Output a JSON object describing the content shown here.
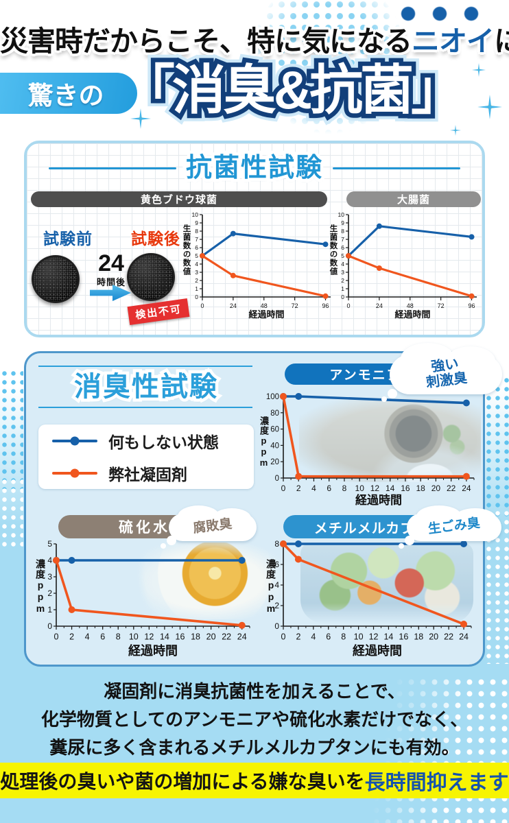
{
  "header": {
    "line1_black1": "災害時だからこそ、特に気になる",
    "line1_blue": "ニオイ",
    "line1_black2": "にも",
    "badge": "驚きの",
    "big_title": "「消臭&抗菌」"
  },
  "antibacterial": {
    "title": "抗菌性試験",
    "pill_left": "黄色ブドウ球菌",
    "pill_right": "大腸菌",
    "before_label": "試験前",
    "after_label": "試験後",
    "elapsed_value": "24",
    "elapsed_suffix": "時間後",
    "not_detected": "検出不可"
  },
  "deodorant": {
    "title": "消臭性試験",
    "legend": [
      {
        "label": "何もしない状態",
        "color": "#1660a9"
      },
      {
        "label": "弊社凝固剤",
        "color": "#f0561e"
      }
    ],
    "ammonia_pill": "アンモニア",
    "ammonia_cloud": "強い\n刺激臭",
    "sulfide_pill": "硫化水素",
    "sulfide_cloud": "腐敗臭",
    "methyl_pill": "メチルメルカプタン",
    "methyl_cloud": "生ごみ臭"
  },
  "footer": {
    "lines": [
      "凝固剤に消臭抗菌性を加えることで、",
      "化学物質としてのアンモニアや硫化水素だけでなく、",
      "糞尿に多く含まれるメチルメルカプタンにも有効。"
    ],
    "bar_black": "処理後の臭いや菌の増加による嫌な臭いを",
    "bar_blue": "長時間抑えます"
  },
  "chart_data": [
    {
      "id": "staph",
      "type": "line",
      "title": "黄色ブドウ球菌",
      "x": [
        0,
        24,
        96
      ],
      "series": [
        {
          "name": "何もしない状態",
          "color": "#1660a9",
          "values": [
            5,
            7.7,
            6.4
          ]
        },
        {
          "name": "弊社凝固剤",
          "color": "#f0561e",
          "values": [
            5,
            2.6,
            0.1
          ]
        }
      ],
      "xlabel": "経過時間",
      "ylabel": "生菌数の数値",
      "xlim": [
        0,
        100
      ],
      "ylim": [
        0,
        10
      ],
      "xticks": [
        0,
        24,
        48,
        72,
        96
      ],
      "yticks": [
        0,
        1,
        2,
        3,
        4,
        5,
        6,
        7,
        8,
        9,
        10
      ],
      "grid": false,
      "legend_position": "none"
    },
    {
      "id": "ecoli",
      "type": "line",
      "title": "大腸菌",
      "x": [
        0,
        24,
        96
      ],
      "series": [
        {
          "name": "何もしない状態",
          "color": "#1660a9",
          "values": [
            5,
            8.6,
            7.3
          ]
        },
        {
          "name": "弊社凝固剤",
          "color": "#f0561e",
          "values": [
            5,
            3.5,
            0.1
          ]
        }
      ],
      "xlabel": "経過時間",
      "ylabel": "生菌数の数値",
      "xlim": [
        0,
        100
      ],
      "ylim": [
        0,
        10
      ],
      "xticks": [
        0,
        24,
        48,
        72,
        96
      ],
      "yticks": [
        0,
        1,
        2,
        3,
        4,
        5,
        6,
        7,
        8,
        9,
        10
      ],
      "grid": false,
      "legend_position": "none"
    },
    {
      "id": "ammonia",
      "type": "line",
      "title": "アンモニア",
      "x": [
        0,
        2,
        24
      ],
      "series": [
        {
          "name": "何もしない状態",
          "color": "#1660a9",
          "values": [
            100,
            100,
            92
          ]
        },
        {
          "name": "弊社凝固剤",
          "color": "#f0561e",
          "values": [
            100,
            2,
            2
          ]
        }
      ],
      "xlabel": "経過時間",
      "ylabel": "濃度ppm",
      "xlim": [
        0,
        25
      ],
      "ylim": [
        0,
        100
      ],
      "xticks": [
        0,
        2,
        4,
        6,
        8,
        10,
        12,
        14,
        16,
        18,
        20,
        22,
        24
      ],
      "xminor": 1,
      "yticks": [
        0,
        20,
        40,
        60,
        80,
        100
      ],
      "grid": false,
      "legend_position": "none"
    },
    {
      "id": "sulfide",
      "type": "line",
      "title": "硫化水素",
      "x": [
        0,
        2,
        24
      ],
      "series": [
        {
          "name": "何もしない状態",
          "color": "#1660a9",
          "values": [
            4,
            4,
            4
          ]
        },
        {
          "name": "弊社凝固剤",
          "color": "#f0561e",
          "values": [
            4,
            1,
            0.05
          ]
        }
      ],
      "xlabel": "経過時間",
      "ylabel": "濃度ppm",
      "xlim": [
        0,
        25
      ],
      "ylim": [
        0,
        5
      ],
      "xticks": [
        0,
        2,
        4,
        6,
        8,
        10,
        12,
        14,
        16,
        18,
        20,
        22,
        24
      ],
      "xminor": 1,
      "yticks": [
        0,
        1,
        2,
        3,
        4,
        5
      ],
      "grid": false,
      "legend_position": "none"
    },
    {
      "id": "methyl",
      "type": "line",
      "title": "メチルメルカプタン",
      "x": [
        0,
        2,
        24
      ],
      "series": [
        {
          "name": "何もしない状態",
          "color": "#1660a9",
          "values": [
            8,
            8,
            8
          ]
        },
        {
          "name": "弊社凝固剤",
          "color": "#f0561e",
          "values": [
            8,
            6.5,
            0.2
          ]
        }
      ],
      "xlabel": "経過時間",
      "ylabel": "濃度ppm",
      "xlim": [
        0,
        25
      ],
      "ylim": [
        0,
        8
      ],
      "xticks": [
        0,
        2,
        4,
        6,
        8,
        10,
        12,
        14,
        16,
        18,
        20,
        22,
        24
      ],
      "xminor": 1,
      "yticks": [
        0,
        2,
        4,
        6,
        8
      ],
      "grid": false,
      "legend_position": "none"
    }
  ]
}
